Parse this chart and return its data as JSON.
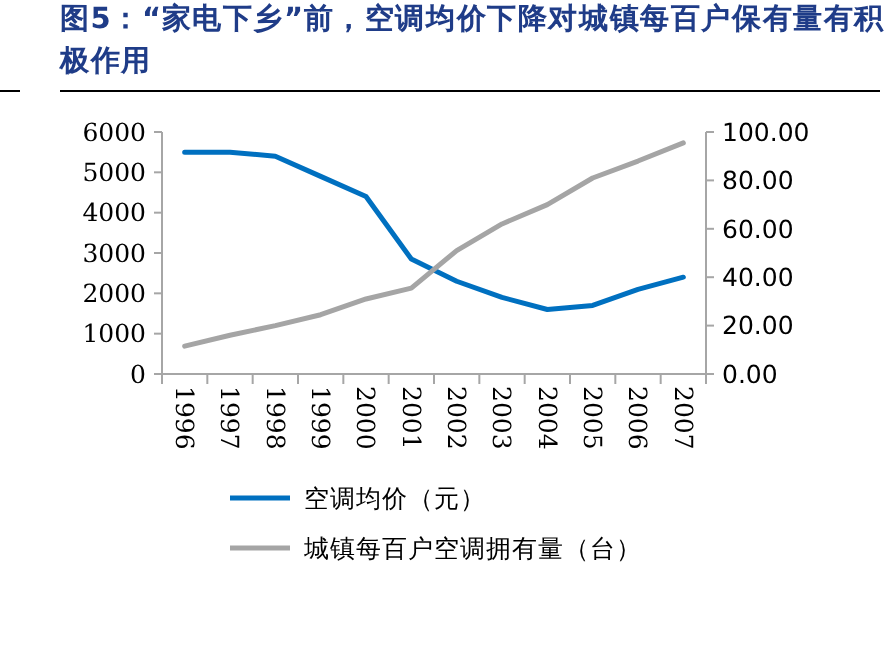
{
  "chart_data": {
    "type": "line",
    "title": "图5：“家电下乡”前，空调均价下降对城镇每百户保有量有积极作用",
    "categories": [
      "1996",
      "1997",
      "1998",
      "1999",
      "2000",
      "2001",
      "2002",
      "2003",
      "2004",
      "2005",
      "2006",
      "2007"
    ],
    "series": [
      {
        "name": "空调均价（元）",
        "color": "#0070c0",
        "values": [
          5500,
          5500,
          5400,
          4900,
          4400,
          2850,
          2300,
          1900,
          1600,
          1700,
          2100,
          2400
        ]
      },
      {
        "name": "城镇每百户空调拥有量（台）",
        "color": "#a5a5a5",
        "axis": "y2",
        "values": [
          11.5,
          16,
          20,
          24.5,
          31,
          35.5,
          51,
          62,
          70,
          81,
          88,
          95.5
        ]
      }
    ],
    "ylim": [
      0,
      6000
    ],
    "yticks": [
      0,
      1000,
      2000,
      3000,
      4000,
      5000,
      6000
    ],
    "y2lim": [
      0,
      100
    ],
    "y2ticks": [
      {
        "value": 0,
        "label": "0.00"
      },
      {
        "value": 20,
        "label": "20.00"
      },
      {
        "value": 40,
        "label": "40.00"
      },
      {
        "value": 60,
        "label": "60.00"
      },
      {
        "value": 80,
        "label": "80.00"
      },
      {
        "value": 100,
        "label": "100.00"
      }
    ],
    "grid": false,
    "legend": "bottom",
    "marker": "none",
    "line_style": "solid"
  }
}
